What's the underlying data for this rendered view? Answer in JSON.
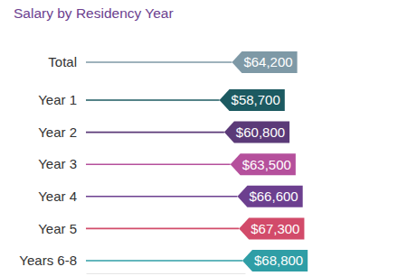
{
  "chart_data": {
    "type": "bar",
    "orientation": "horizontal",
    "title": "Salary by Residency Year",
    "categories": [
      "Total",
      "Year 1",
      "Year 2",
      "Year 3",
      "Year 4",
      "Year 5",
      "Years 6-8"
    ],
    "values": [
      64200,
      58700,
      60800,
      63500,
      66600,
      67300,
      68800
    ],
    "value_labels": [
      "$64,200",
      "$58,700",
      "$60,800",
      "$63,500",
      "$66,600",
      "$67,300",
      "$68,800"
    ],
    "colors": [
      "#7e99a6",
      "#1c5a61",
      "#5b3a78",
      "#b5509c",
      "#6c3f8f",
      "#d24b6a",
      "#2f9ea6"
    ],
    "xlim": [
      0,
      70000
    ],
    "data_labels": true,
    "tick_labels": false,
    "grid": false
  }
}
